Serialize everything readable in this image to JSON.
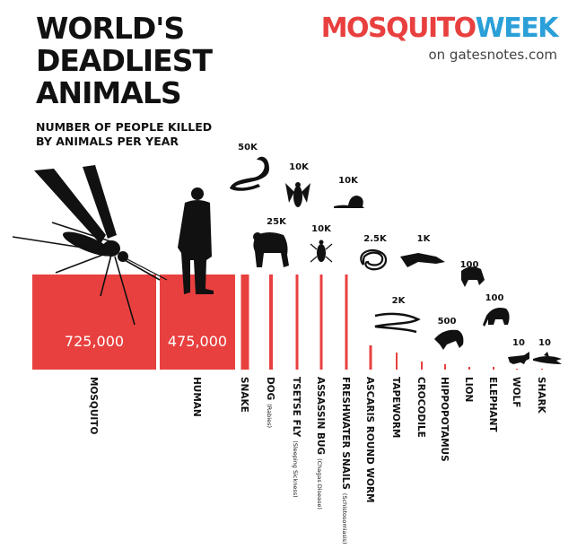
{
  "header": {
    "title_lines": [
      "WORLD'S",
      "DEADLIEST",
      "ANIMALS"
    ],
    "subtitle_lines": [
      "NUMBER OF PEOPLE KILLED",
      "BY ANIMALS PER YEAR"
    ],
    "brand_mosquito": "MOSQUITO",
    "brand_week": "WEEK",
    "brand_sub": "on gatesnotes.com"
  },
  "colors": {
    "bar": "#e8403f",
    "text": "#111111",
    "bar_value_text": "#ffffff",
    "silhouette": "#111111",
    "brand_mosquito": "#e8403f",
    "brand_week": "#2a9fd8"
  },
  "chart_data": {
    "type": "bar",
    "categories": [
      "MOSQUITO",
      "HUMAN",
      "SNAKE",
      "DOG",
      "TSETSE FLY",
      "ASSASSIN BUG",
      "FRESHWATER SNAILS",
      "ASCARIS ROUND WORM",
      "TAPEWORM",
      "CROCODILE",
      "HIPPOPOTAMUS",
      "LION",
      "ELEPHANT",
      "WOLF",
      "SHARK"
    ],
    "category_notes": [
      "",
      "",
      "",
      "(Rabies)",
      "(Sleeping Sickness)",
      "(Chagas Disease)",
      "(Schistosomiasis)",
      "",
      "",
      "",
      "",
      "",
      "",
      "",
      ""
    ],
    "values": [
      725000,
      475000,
      50000,
      25000,
      10000,
      10000,
      10000,
      2500,
      2000,
      1000,
      500,
      100,
      100,
      10,
      10
    ],
    "value_labels": [
      "725,000",
      "475,000",
      "50K",
      "25K",
      "10K",
      "10K",
      "10K",
      "2.5K",
      "2K",
      "1K",
      "500",
      "100",
      "100",
      "10",
      "10"
    ],
    "icons": [
      "mosquito-icon",
      "human-icon",
      "snake-icon",
      "dog-icon",
      "tsetse-fly-icon",
      "assassin-bug-icon",
      "snail-icon",
      "roundworm-icon",
      "tapeworm-icon",
      "crocodile-icon",
      "hippopotamus-icon",
      "lion-icon",
      "elephant-icon",
      "wolf-icon",
      "shark-icon"
    ],
    "xlabel": "",
    "ylabel": "",
    "grid": false,
    "legend": false
  }
}
